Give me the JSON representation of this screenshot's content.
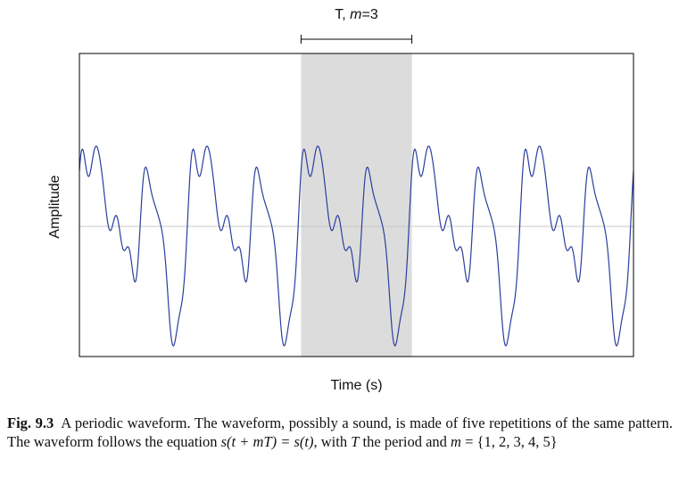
{
  "chart_data": {
    "type": "line",
    "title": "",
    "xlabel": "Time (s)",
    "ylabel": "Amplitude",
    "grid": false,
    "legend": "none",
    "baseline": 0,
    "series": [
      {
        "color": "#2b3f9e",
        "period": 1,
        "repetitions": 5,
        "harmonics": [
          {
            "k": 1,
            "amp": 0.3,
            "phase": 0.1
          },
          {
            "k": 2,
            "amp": 0.55,
            "phase": 0.0
          },
          {
            "k": 3,
            "amp": 0.25,
            "phase": 1.2
          },
          {
            "k": 5,
            "amp": 0.15,
            "phase": 2.0
          },
          {
            "k": 7,
            "amp": 0.12,
            "phase": 0.5
          },
          {
            "k": 9,
            "amp": 0.06,
            "phase": 1.0
          }
        ]
      }
    ],
    "highlight": {
      "label": "T, m=3",
      "label_prefix": "T, ",
      "label_var": "m",
      "label_suffix": "=3",
      "period_index": 3,
      "fill": "#dcdcdc"
    },
    "colors": {
      "axes": "#000000",
      "baseline": "#c8c8c8",
      "wave": "#2b3f9e",
      "highlight": "#dcdcdc"
    }
  },
  "caption": {
    "label": "Fig. 9.3",
    "text_1": "A periodic waveform. The waveform, possibly a sound, is made of five repetitions of the same pattern. The waveform follows the equation ",
    "equation": "s(t + mT) = s(t)",
    "text_2": ", with ",
    "var_T": "T",
    "text_3": " the period and ",
    "var_m": "m",
    "text_4": " = {1, 2, 3, 4, 5}"
  }
}
